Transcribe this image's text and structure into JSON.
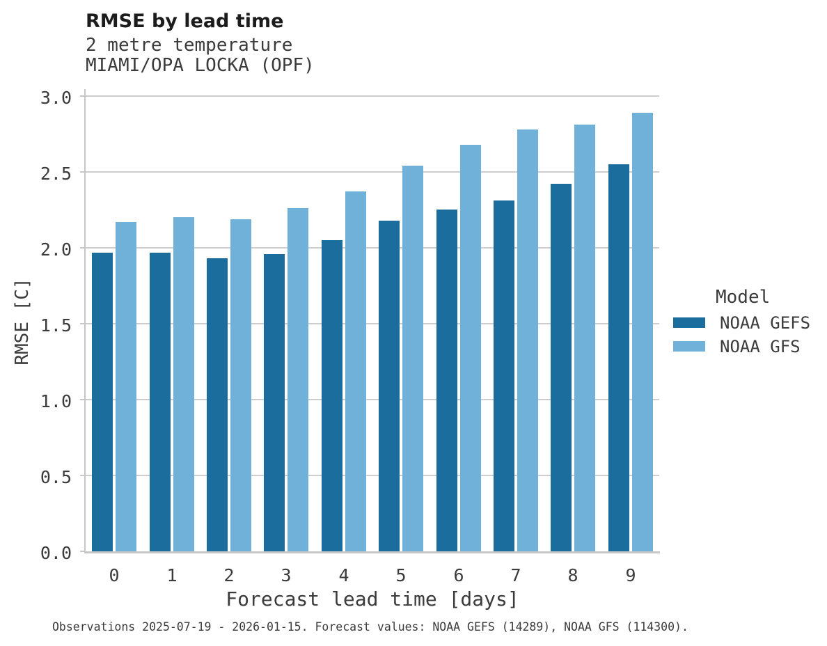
{
  "chart_data": {
    "type": "bar",
    "title": "RMSE by lead time",
    "subtitle_lines": [
      "2 metre temperature",
      "MIAMI/OPA LOCKA (OPF)"
    ],
    "categories": [
      "0",
      "1",
      "2",
      "3",
      "4",
      "5",
      "6",
      "7",
      "8",
      "9"
    ],
    "series": [
      {
        "name": "NOAA GEFS",
        "color": "#1b6d9d",
        "values": [
          1.97,
          1.97,
          1.93,
          1.96,
          2.05,
          2.18,
          2.25,
          2.31,
          2.42,
          2.55
        ]
      },
      {
        "name": "NOAA GFS",
        "color": "#6fb1d8",
        "values": [
          2.17,
          2.2,
          2.19,
          2.26,
          2.37,
          2.54,
          2.68,
          2.78,
          2.81,
          2.89
        ]
      }
    ],
    "xlabel": "Forecast lead time [days]",
    "ylabel": "RMSE [C]",
    "ylim": [
      0.0,
      3.0
    ],
    "ytick_labels": [
      "0.0",
      "0.5",
      "1.0",
      "1.5",
      "2.0",
      "2.5",
      "3.0"
    ],
    "grid": "horizontal",
    "legend": {
      "title": "Model",
      "position": "right-center"
    },
    "colors": {
      "grid": "#cdcdcd",
      "spine": "#c7c7c7",
      "text": "#3b3b3b"
    }
  },
  "caption": "Observations 2025-07-19 - 2026-01-15. Forecast values: NOAA GEFS (14289), NOAA GFS (114300)."
}
